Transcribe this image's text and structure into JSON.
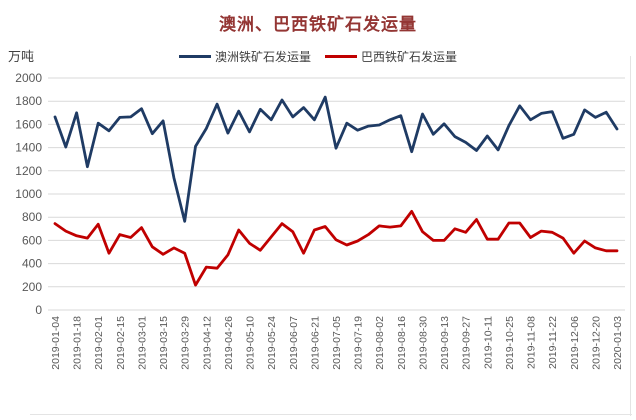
{
  "chart": {
    "title": "澳洲、巴西铁矿石发运量",
    "title_color": "#943634",
    "unit": "万吨",
    "legend": [
      {
        "label": "澳洲铁矿石发运量",
        "color": "#1f3b64"
      },
      {
        "label": "巴西铁矿石发运量",
        "color": "#c00000"
      }
    ]
  },
  "chart_data": {
    "type": "line",
    "title": "澳洲、巴西铁矿石发运量",
    "xlabel": "",
    "ylabel": "万吨",
    "ylim": [
      0,
      2000
    ],
    "ytick_step": 200,
    "grid": "horizontal",
    "legend_position": "top-center",
    "x_label_every": 2,
    "x_label_rotation": -90,
    "x": [
      "2019-01-04",
      "2019-01-11",
      "2019-01-18",
      "2019-01-25",
      "2019-02-01",
      "2019-02-08",
      "2019-02-15",
      "2019-02-22",
      "2019-03-01",
      "2019-03-08",
      "2019-03-15",
      "2019-03-22",
      "2019-03-29",
      "2019-04-05",
      "2019-04-12",
      "2019-04-19",
      "2019-04-26",
      "2019-05-03",
      "2019-05-10",
      "2019-05-17",
      "2019-05-24",
      "2019-05-31",
      "2019-06-07",
      "2019-06-14",
      "2019-06-21",
      "2019-06-28",
      "2019-07-05",
      "2019-07-12",
      "2019-07-19",
      "2019-07-26",
      "2019-08-02",
      "2019-08-09",
      "2019-08-16",
      "2019-08-23",
      "2019-08-30",
      "2019-09-06",
      "2019-09-13",
      "2019-09-20",
      "2019-09-27",
      "2019-10-04",
      "2019-10-11",
      "2019-10-18",
      "2019-10-25",
      "2019-11-01",
      "2019-11-08",
      "2019-11-15",
      "2019-11-22",
      "2019-11-29",
      "2019-12-06",
      "2019-12-13",
      "2019-12-20",
      "2019-12-27",
      "2020-01-03"
    ],
    "series": [
      {
        "name": "澳洲铁矿石发运量",
        "color": "#1f3b64",
        "values": [
          1665,
          1405,
          1700,
          1235,
          1610,
          1545,
          1660,
          1665,
          1735,
          1520,
          1630,
          1140,
          765,
          1410,
          1565,
          1775,
          1525,
          1715,
          1535,
          1730,
          1640,
          1810,
          1665,
          1745,
          1640,
          1835,
          1395,
          1610,
          1550,
          1585,
          1595,
          1640,
          1675,
          1365,
          1690,
          1515,
          1605,
          1495,
          1445,
          1375,
          1500,
          1380,
          1590,
          1760,
          1640,
          1695,
          1710,
          1480,
          1515,
          1725,
          1660,
          1705,
          1560
        ]
      },
      {
        "name": "巴西铁矿石发运量",
        "color": "#c00000",
        "values": [
          745,
          680,
          640,
          620,
          740,
          490,
          650,
          625,
          710,
          545,
          480,
          535,
          490,
          215,
          370,
          360,
          475,
          690,
          575,
          515,
          630,
          745,
          675,
          490,
          690,
          720,
          605,
          560,
          595,
          650,
          725,
          715,
          725,
          850,
          675,
          600,
          600,
          700,
          670,
          780,
          610,
          610,
          750,
          750,
          625,
          680,
          670,
          620,
          490,
          595,
          535,
          510,
          510
        ]
      }
    ],
    "axis_text_color": "#595959",
    "gridline_color": "#d9d9d9"
  }
}
